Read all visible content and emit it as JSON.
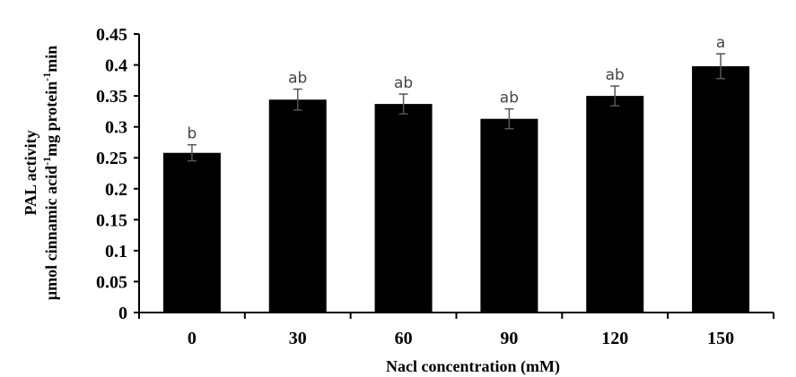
{
  "chart_data": {
    "type": "bar",
    "title": "",
    "xlabel": "Nacl concentration (mM)",
    "ylabel_line1": "PAL activity",
    "ylabel_line2_parts": [
      "µmol cinnamic acid",
      "-1",
      "mg  protein",
      "-1",
      "min"
    ],
    "categories": [
      "0",
      "30",
      "60",
      "90",
      "120",
      "150"
    ],
    "values": [
      0.258,
      0.344,
      0.337,
      0.313,
      0.35,
      0.398
    ],
    "errors": [
      0.013,
      0.017,
      0.016,
      0.016,
      0.016,
      0.02
    ],
    "significance": [
      "b",
      "ab",
      "ab",
      "ab",
      "ab",
      "a"
    ],
    "ylim": [
      0,
      0.45
    ],
    "yticks": [
      "0",
      "0.05",
      "0.1",
      "0.15",
      "0.2",
      "0.25",
      "0.3",
      "0.35",
      "0.4",
      "0.45"
    ],
    "grid": false,
    "bar_color": "#000000",
    "error_color": "#555555",
    "significance_color": "#444444"
  }
}
